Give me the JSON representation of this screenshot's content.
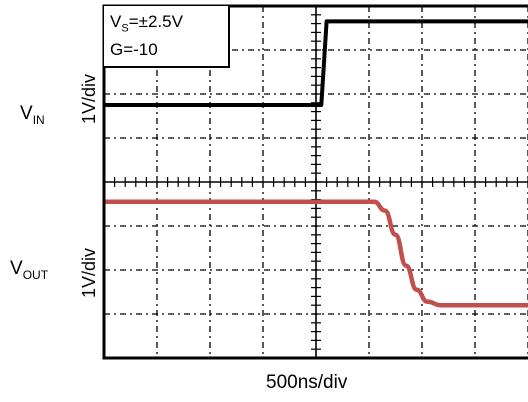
{
  "chart_data": {
    "type": "line",
    "annotation": {
      "vs_prefix": "V",
      "vs_sub": "S",
      "vs_value": "=±2.5V",
      "gain": "G=-10"
    },
    "channels": [
      {
        "label_main": "V",
        "label_sub": "IN",
        "scale": "1V/div"
      },
      {
        "label_main": "V",
        "label_sub": "OUT",
        "scale": "1V/div"
      }
    ],
    "xlabel": "500ns/div",
    "grid": {
      "x_divisions": 9,
      "y_divisions": 8
    },
    "series": [
      {
        "color": "#000000",
        "points_div": [
          [
            0,
            1.75
          ],
          [
            4.1,
            1.75
          ],
          [
            4.2,
            3.65
          ],
          [
            9,
            3.65
          ]
        ]
      },
      {
        "color": "#c0504d",
        "points_div": [
          [
            0,
            -0.45
          ],
          [
            5.1,
            -0.45
          ],
          [
            5.3,
            -0.65
          ],
          [
            5.5,
            -1.2
          ],
          [
            5.7,
            -1.9
          ],
          [
            5.9,
            -2.45
          ],
          [
            6.1,
            -2.72
          ],
          [
            6.35,
            -2.8
          ],
          [
            9,
            -2.8
          ]
        ]
      }
    ]
  }
}
